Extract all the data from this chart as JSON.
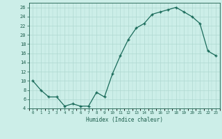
{
  "xlabel": "Humidex (Indice chaleur)",
  "x_values": [
    0,
    1,
    2,
    3,
    4,
    5,
    6,
    7,
    8,
    9,
    10,
    11,
    12,
    13,
    14,
    15,
    16,
    17,
    18,
    19,
    20,
    21,
    22,
    23
  ],
  "y_values": [
    10,
    8,
    6.5,
    6.5,
    4.5,
    5,
    4.5,
    4.5,
    7.5,
    6.5,
    11.5,
    15.5,
    19,
    21.5,
    22.5,
    24.5,
    25,
    25.5,
    26,
    25,
    24,
    22.5,
    16.5,
    15.5
  ],
  "line_color": "#1a6b5a",
  "marker_color": "#1a6b5a",
  "bg_color": "#cceee8",
  "grid_color": "#aed8d0",
  "text_color": "#1a5c4a",
  "ylim": [
    4,
    27
  ],
  "xlim": [
    -0.5,
    23.5
  ],
  "yticks": [
    4,
    6,
    8,
    10,
    12,
    14,
    16,
    18,
    20,
    22,
    24,
    26
  ],
  "xticks": [
    0,
    1,
    2,
    3,
    4,
    5,
    6,
    7,
    8,
    9,
    10,
    11,
    12,
    13,
    14,
    15,
    16,
    17,
    18,
    19,
    20,
    21,
    22,
    23
  ],
  "xtick_labels": [
    "0",
    "1",
    "2",
    "3",
    "4",
    "5",
    "6",
    "7",
    "8",
    "9",
    "10",
    "11",
    "12",
    "13",
    "14",
    "15",
    "16",
    "17",
    "18",
    "19",
    "20",
    "21",
    "22",
    "23"
  ]
}
